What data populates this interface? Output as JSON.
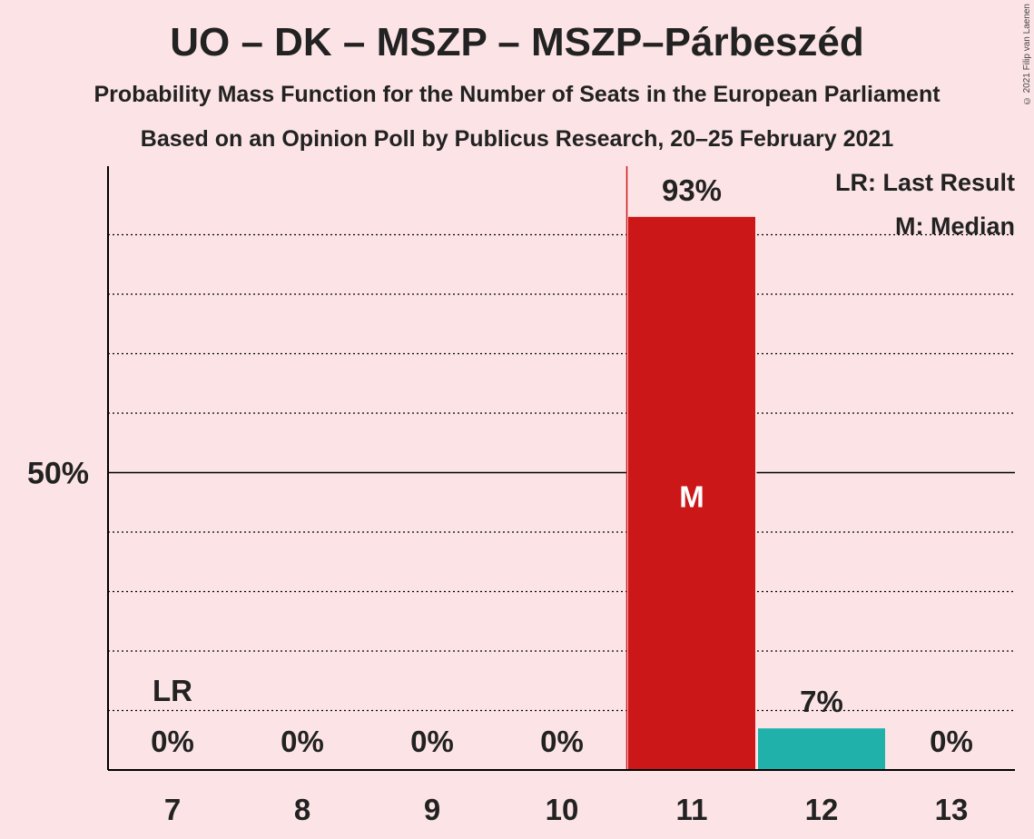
{
  "title": "UO – DK – MSZP – MSZP–Párbeszéd",
  "subtitle": "Probability Mass Function for the Number of Seats in the European Parliament",
  "subtitle2": "Based on an Opinion Poll by Publicus Research, 20–25 February 2021",
  "copyright": "© 2021 Filip van Laenen",
  "legend": {
    "last_result": "LR: Last Result",
    "median": "M: Median"
  },
  "colors": {
    "background": "#fce4e6",
    "median_bar": "#cc1719",
    "other_bar": "#20b2aa",
    "last_result_line": "#cc1719"
  },
  "chart_data": {
    "type": "bar",
    "categories": [
      "7",
      "8",
      "9",
      "10",
      "11",
      "12",
      "13"
    ],
    "values": [
      0,
      0,
      0,
      0,
      93,
      7,
      0
    ],
    "value_labels": [
      "0%",
      "0%",
      "0%",
      "0%",
      "93%",
      "7%",
      "0%"
    ],
    "ylim": [
      0,
      100
    ],
    "y_tick_label": "50%",
    "y_tick_value": 50,
    "gridlines_dotted_every": 10,
    "last_result_category": "7",
    "last_result_marker": "LR",
    "median_category": "11",
    "median_marker": "M",
    "legend_position": "top-right"
  }
}
